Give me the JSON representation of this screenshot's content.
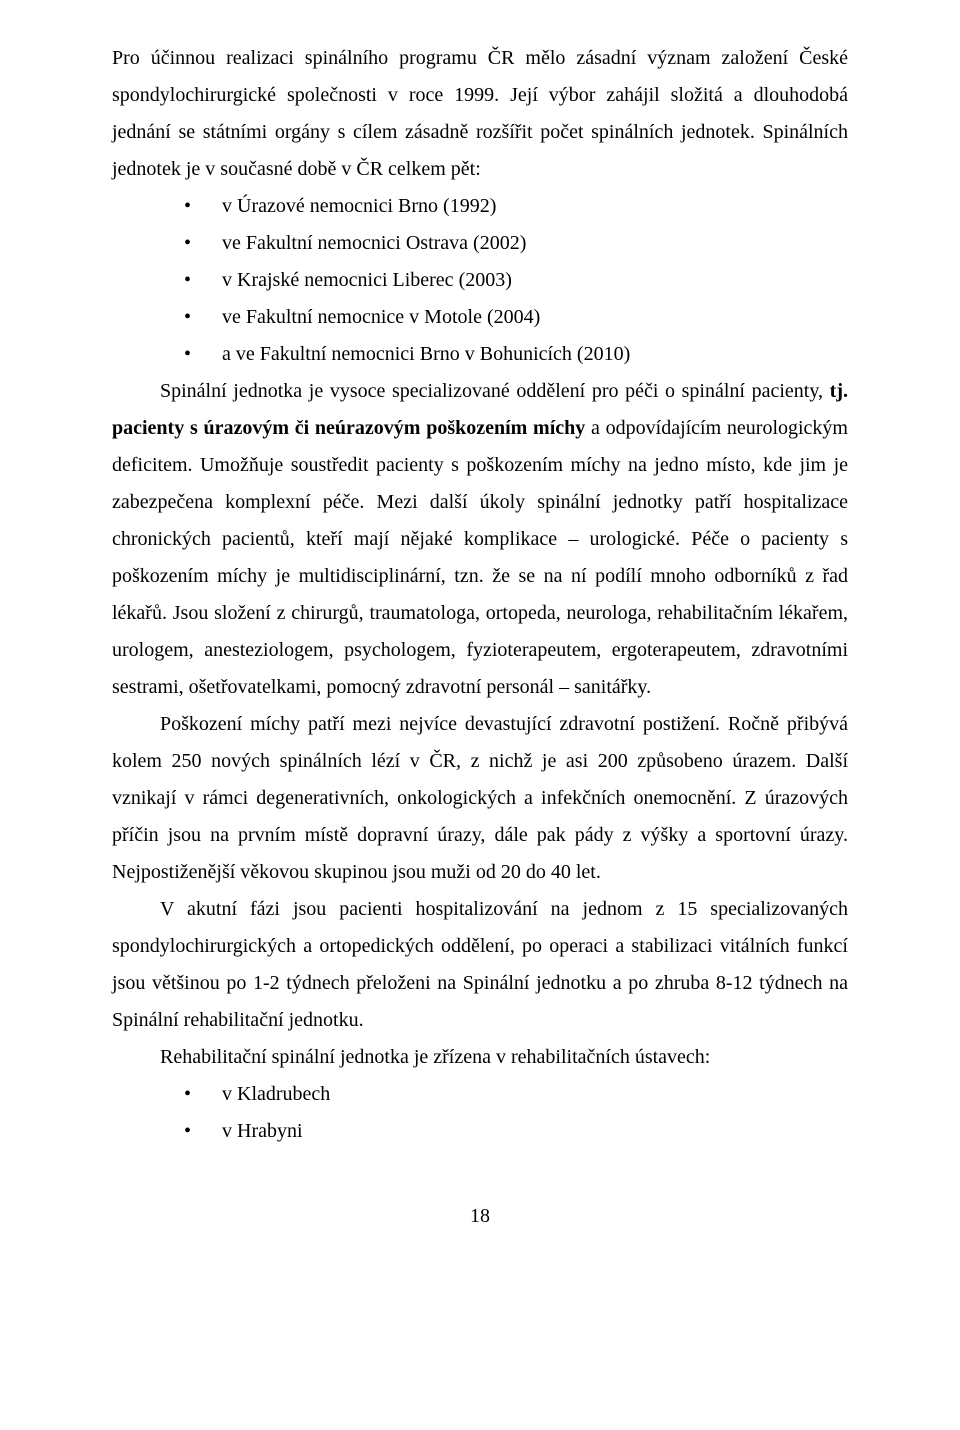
{
  "p1": "Pro účinnou realizaci spinálního programu ČR mělo zásadní význam založení České spondylochirurgické společnosti v roce 1999. Její výbor zahájil složitá a dlouhodobá jednání se státními orgány s cílem zásadně rozšířit počet spinálních jednotek. Spinálních jednotek je v současné době v ČR celkem pět:",
  "list1": {
    "0": "v Úrazové nemocnici Brno  (1992)",
    "1": "ve Fakultní nemocnici Ostrava  (2002)",
    "2": "v Krajské nemocnici Liberec  (2003)",
    "3": "ve Fakultní nemocnice v Motole  (2004)",
    "4": "a ve Fakultní nemocnici Brno v Bohunicích  (2010)"
  },
  "p2a": "Spinální jednotka je vysoce specializované oddělení pro péči o spinální pacienty, ",
  "p2b": "tj. pacienty s úrazovým či neúrazovým poškozením míchy",
  "p2c": " a odpovídajícím neurologickým deficitem. Umožňuje soustředit pacienty s poškozením míchy na jedno místo, kde jim je zabezpečena komplexní péče. Mezi další úkoly spinální jednotky patří hospitalizace chronických pacientů, kteří mají nějaké komplikace – urologické. Péče o pacienty s poškozením míchy je multidisciplinární, tzn. že se na ní podílí mnoho odborníků z řad lékařů. Jsou složení z chirurgů, traumatologa, ortopeda, neurologa, rehabilitačním lékařem, urologem, anesteziologem, psychologem, fyzioterapeutem, ergoterapeutem, zdravotními sestrami, ošetřovatelkami, pomocný zdravotní personál – sanitářky.",
  "p3": "Poškození míchy patří mezi nejvíce devastující zdravotní postižení. Ročně přibývá kolem 250 nových spinálních lézí v ČR, z nichž je asi 200 způsobeno úrazem. Další vznikají v rámci degenerativních, onkologických a infekčních onemocnění. Z úrazových příčin jsou na prvním místě dopravní úrazy, dále pak pády z výšky a sportovní úrazy. Nejpostiženější věkovou skupinou jsou muži od 20 do 40 let.",
  "p4": "V akutní fázi jsou pacienti hospitalizování na jednom z 15 specializovaných spondylochirurgických a ortopedických oddělení, po operaci a stabilizaci vitálních funkcí jsou většinou po 1-2 týdnech přeloženi na Spinální jednotku a po zhruba 8-12 týdnech na Spinální rehabilitační jednotku.",
  "p5": "Rehabilitační spinální jednotka je zřízena v rehabilitačních ústavech:",
  "list2": {
    "0": "v Kladrubech",
    "1": " v Hrabyni"
  },
  "pagenum": "18"
}
